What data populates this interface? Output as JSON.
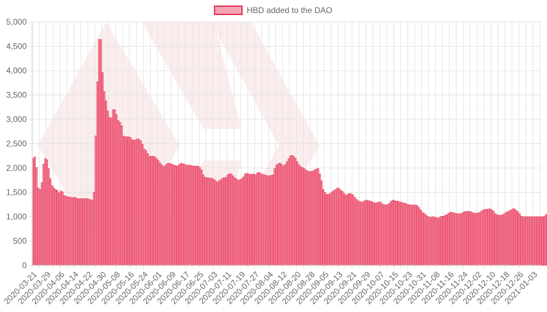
{
  "chart_data": {
    "type": "bar",
    "legend": {
      "label": "HBD added to the DAO",
      "position": "top"
    },
    "colors": {
      "bar_fill": "#f3879c",
      "bar_stroke": "#e8385a",
      "legend_fill": "#f6a5b4",
      "legend_stroke": "#e8385a",
      "grid": "#e5e5e5",
      "axis": "#c8c8c8",
      "watermark": "#f7dede"
    },
    "ylim": [
      0,
      5000
    ],
    "y_ticks": [
      "0",
      "500",
      "1,000",
      "1,500",
      "2,000",
      "2,500",
      "3,000",
      "3,500",
      "4,000",
      "4,500",
      "5,000"
    ],
    "x_tick_labels": [
      "2020-03-21",
      "2020-03-29",
      "2020-04-06",
      "2020-04-14",
      "2020-04-22",
      "2020-04-30",
      "2020-05-08",
      "2020-05-16",
      "2020-05-24",
      "2020-06-01",
      "2020-06-09",
      "2020-06-17",
      "2020-06-25",
      "2020-07-03",
      "2020-07-11",
      "2020-07-19",
      "2020-07-27",
      "2020-08-04",
      "2020-08-12",
      "2020-08-20",
      "2020-08-28",
      "2020-09-05",
      "2020-09-13",
      "2020-09-21",
      "2020-09-29",
      "2020-10-07",
      "2020-10-15",
      "2020-10-23",
      "2020-10-31",
      "2020-11-08",
      "2020-11-16",
      "2020-11-24",
      "2020-12-02",
      "2020-12-10",
      "2020-12-18",
      "2020-12-26",
      "2021-01-03"
    ],
    "start_date": "2020-03-21",
    "end_date": "2021-01-07",
    "grid": true,
    "values": [
      2200,
      2230,
      2010,
      1590,
      1560,
      1700,
      2080,
      2200,
      2170,
      1990,
      1780,
      1640,
      1590,
      1560,
      1540,
      1490,
      1530,
      1510,
      1440,
      1420,
      1410,
      1400,
      1400,
      1390,
      1400,
      1380,
      1370,
      1370,
      1370,
      1370,
      1370,
      1370,
      1360,
      1350,
      1340,
      1500,
      2660,
      3770,
      4640,
      4640,
      3960,
      3570,
      3380,
      3170,
      3040,
      3030,
      3200,
      3200,
      3100,
      2980,
      2940,
      2870,
      2660,
      2640,
      2640,
      2640,
      2630,
      2580,
      2570,
      2580,
      2600,
      2590,
      2560,
      2490,
      2390,
      2360,
      2300,
      2240,
      2240,
      2240,
      2230,
      2200,
      2160,
      2110,
      2070,
      2030,
      2050,
      2090,
      2100,
      2090,
      2080,
      2060,
      2050,
      2040,
      2070,
      2100,
      2090,
      2080,
      2060,
      2060,
      2060,
      2050,
      2040,
      2040,
      2040,
      2040,
      2010,
      1960,
      1860,
      1810,
      1800,
      1800,
      1790,
      1790,
      1770,
      1740,
      1710,
      1740,
      1760,
      1790,
      1800,
      1810,
      1860,
      1880,
      1880,
      1840,
      1800,
      1780,
      1750,
      1760,
      1780,
      1820,
      1880,
      1890,
      1880,
      1870,
      1870,
      1880,
      1860,
      1900,
      1910,
      1890,
      1870,
      1860,
      1850,
      1840,
      1840,
      1850,
      1860,
      1990,
      2060,
      2090,
      2100,
      2080,
      2040,
      2070,
      2130,
      2190,
      2250,
      2260,
      2240,
      2200,
      2130,
      2070,
      2030,
      2010,
      1990,
      1960,
      1940,
      1930,
      1930,
      1940,
      1960,
      1980,
      1990,
      1880,
      1740,
      1560,
      1500,
      1460,
      1460,
      1480,
      1510,
      1540,
      1560,
      1590,
      1580,
      1550,
      1520,
      1480,
      1440,
      1460,
      1480,
      1470,
      1450,
      1400,
      1360,
      1330,
      1310,
      1300,
      1310,
      1330,
      1340,
      1330,
      1320,
      1310,
      1290,
      1280,
      1290,
      1300,
      1300,
      1260,
      1250,
      1240,
      1250,
      1280,
      1320,
      1340,
      1330,
      1320,
      1320,
      1300,
      1300,
      1280,
      1280,
      1260,
      1250,
      1240,
      1240,
      1240,
      1240,
      1230,
      1190,
      1140,
      1090,
      1070,
      1040,
      1010,
      990,
      990,
      1000,
      990,
      980,
      970,
      990,
      1010,
      1010,
      1030,
      1040,
      1070,
      1090,
      1090,
      1080,
      1070,
      1060,
      1060,
      1060,
      1080,
      1100,
      1110,
      1110,
      1110,
      1100,
      1080,
      1070,
      1070,
      1080,
      1090,
      1120,
      1140,
      1150,
      1150,
      1160,
      1160,
      1140,
      1110,
      1060,
      1040,
      1030,
      1030,
      1040,
      1060,
      1090,
      1100,
      1120,
      1140,
      1160,
      1160,
      1130,
      1100,
      1060,
      1010,
      1000,
      1000,
      1000,
      1000,
      1000,
      1000,
      1000,
      1000,
      1000,
      1000,
      1000,
      1000,
      1010,
      1040,
      1070,
      1100
    ]
  }
}
